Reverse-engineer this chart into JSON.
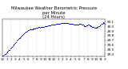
{
  "title": "Milwaukee Weather Barometric Pressure\nper Minute\n(24 Hours)",
  "title_fontsize": 3.8,
  "dot_color": "#0000CC",
  "dot_size": 0.5,
  "background_color": "#ffffff",
  "grid_color": "#aaaaaa",
  "tick_color": "#000000",
  "tick_fontsize": 3.0,
  "ylabel_fontsize": 3.0,
  "ylim": [
    29.35,
    30.15
  ],
  "xlim": [
    0,
    1440
  ],
  "yticks": [
    29.4,
    29.5,
    29.6,
    29.7,
    29.8,
    29.9,
    30.0,
    30.1
  ],
  "ytick_labels": [
    "29.4",
    "29.5",
    "29.6",
    "29.7",
    "29.8",
    "29.9",
    "30.0",
    "30.1"
  ],
  "xtick_positions": [
    0,
    60,
    120,
    180,
    240,
    300,
    360,
    420,
    480,
    540,
    600,
    660,
    720,
    780,
    840,
    900,
    960,
    1020,
    1080,
    1140,
    1200,
    1260,
    1320,
    1380,
    1440
  ],
  "xtick_labels": [
    "12",
    "1",
    "2",
    "3",
    "4",
    "5",
    "6",
    "7",
    "8",
    "9",
    "10",
    "11",
    "12",
    "1",
    "2",
    "3",
    "4",
    "5",
    "6",
    "7",
    "8",
    "9",
    "10",
    "11",
    "3"
  ],
  "grid_xtick_positions": [
    120,
    240,
    360,
    480,
    600,
    720,
    840,
    960,
    1080,
    1200,
    1320
  ],
  "pressure_data": [
    [
      0,
      29.38
    ],
    [
      10,
      29.38
    ],
    [
      20,
      29.39
    ],
    [
      30,
      29.4
    ],
    [
      40,
      29.41
    ],
    [
      50,
      29.42
    ],
    [
      60,
      29.44
    ],
    [
      70,
      29.46
    ],
    [
      80,
      29.47
    ],
    [
      90,
      29.49
    ],
    [
      100,
      29.5
    ],
    [
      110,
      29.52
    ],
    [
      120,
      29.54
    ],
    [
      130,
      29.56
    ],
    [
      140,
      29.57
    ],
    [
      150,
      29.59
    ],
    [
      160,
      29.61
    ],
    [
      170,
      29.63
    ],
    [
      180,
      29.65
    ],
    [
      190,
      29.67
    ],
    [
      200,
      29.69
    ],
    [
      210,
      29.71
    ],
    [
      220,
      29.73
    ],
    [
      230,
      29.74
    ],
    [
      240,
      29.75
    ],
    [
      250,
      29.77
    ],
    [
      260,
      29.78
    ],
    [
      270,
      29.8
    ],
    [
      280,
      29.82
    ],
    [
      290,
      29.83
    ],
    [
      300,
      29.85
    ],
    [
      310,
      29.86
    ],
    [
      320,
      29.88
    ],
    [
      330,
      29.88
    ],
    [
      340,
      29.89
    ],
    [
      350,
      29.9
    ],
    [
      360,
      29.91
    ],
    [
      370,
      29.92
    ],
    [
      380,
      29.93
    ],
    [
      390,
      29.93
    ],
    [
      400,
      29.94
    ],
    [
      410,
      29.94
    ],
    [
      420,
      29.93
    ],
    [
      430,
      29.95
    ],
    [
      440,
      29.95
    ],
    [
      450,
      29.96
    ],
    [
      460,
      29.96
    ],
    [
      470,
      29.97
    ],
    [
      480,
      29.97
    ],
    [
      490,
      29.97
    ],
    [
      500,
      29.98
    ],
    [
      510,
      29.98
    ],
    [
      520,
      29.98
    ],
    [
      530,
      29.97
    ],
    [
      540,
      29.98
    ],
    [
      550,
      29.99
    ],
    [
      560,
      29.99
    ],
    [
      570,
      29.99
    ],
    [
      580,
      29.99
    ],
    [
      590,
      30.0
    ],
    [
      600,
      30.0
    ],
    [
      610,
      30.01
    ],
    [
      620,
      30.01
    ],
    [
      630,
      30.01
    ],
    [
      640,
      30.02
    ],
    [
      650,
      30.02
    ],
    [
      660,
      30.02
    ],
    [
      670,
      30.02
    ],
    [
      680,
      30.03
    ],
    [
      690,
      30.03
    ],
    [
      700,
      30.03
    ],
    [
      710,
      30.04
    ],
    [
      720,
      30.04
    ],
    [
      730,
      30.04
    ],
    [
      740,
      30.04
    ],
    [
      750,
      30.05
    ],
    [
      760,
      30.05
    ],
    [
      770,
      30.05
    ],
    [
      780,
      30.06
    ],
    [
      790,
      30.06
    ],
    [
      800,
      30.06
    ],
    [
      810,
      30.06
    ],
    [
      820,
      30.07
    ],
    [
      830,
      30.07
    ],
    [
      840,
      30.07
    ],
    [
      850,
      30.07
    ],
    [
      860,
      30.07
    ],
    [
      870,
      30.07
    ],
    [
      880,
      30.07
    ],
    [
      890,
      30.07
    ],
    [
      900,
      30.07
    ],
    [
      910,
      30.07
    ],
    [
      920,
      30.07
    ],
    [
      930,
      30.06
    ],
    [
      940,
      30.06
    ],
    [
      950,
      30.06
    ],
    [
      960,
      30.06
    ],
    [
      970,
      30.06
    ],
    [
      980,
      30.05
    ],
    [
      990,
      30.05
    ],
    [
      1000,
      30.04
    ],
    [
      1010,
      30.04
    ],
    [
      1020,
      30.03
    ],
    [
      1030,
      30.03
    ],
    [
      1040,
      30.03
    ],
    [
      1050,
      30.03
    ],
    [
      1060,
      30.04
    ],
    [
      1070,
      30.04
    ],
    [
      1080,
      30.05
    ],
    [
      1090,
      30.05
    ],
    [
      1100,
      30.05
    ],
    [
      1110,
      30.04
    ],
    [
      1120,
      30.04
    ],
    [
      1130,
      30.03
    ],
    [
      1140,
      30.02
    ],
    [
      1150,
      30.01
    ],
    [
      1160,
      30.01
    ],
    [
      1170,
      30.01
    ],
    [
      1180,
      30.02
    ],
    [
      1190,
      30.02
    ],
    [
      1200,
      30.03
    ],
    [
      1210,
      30.03
    ],
    [
      1220,
      30.02
    ],
    [
      1230,
      30.02
    ],
    [
      1240,
      30.01
    ],
    [
      1250,
      30.0
    ],
    [
      1260,
      29.99
    ],
    [
      1270,
      29.99
    ],
    [
      1280,
      29.98
    ],
    [
      1290,
      29.97
    ],
    [
      1300,
      29.97
    ],
    [
      1310,
      29.97
    ],
    [
      1320,
      29.97
    ],
    [
      1330,
      29.98
    ],
    [
      1340,
      29.99
    ],
    [
      1350,
      30.0
    ],
    [
      1360,
      30.01
    ],
    [
      1370,
      30.02
    ],
    [
      1380,
      30.03
    ],
    [
      1390,
      30.05
    ],
    [
      1400,
      30.06
    ],
    [
      1410,
      30.07
    ],
    [
      1420,
      30.08
    ],
    [
      1430,
      30.07
    ],
    [
      1440,
      30.06
    ]
  ]
}
